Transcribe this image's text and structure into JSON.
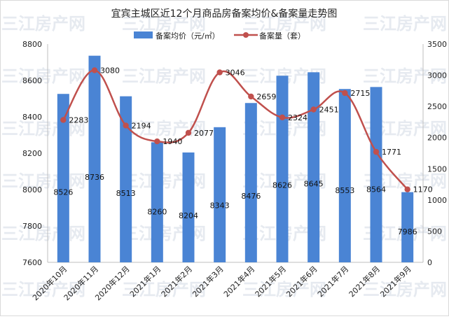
{
  "chart_data": {
    "type": "bar",
    "title": "宜宾主城区近12个月商品房备案均价&备案量走势图",
    "watermark": "三江房产网",
    "categories": [
      "2020年10月",
      "2020年11月",
      "2020年12月",
      "2021年1月",
      "2021年2月",
      "2021年3月",
      "2021年4月",
      "2021年5月",
      "2021年6月",
      "2021年7月",
      "2021年8月",
      "2021年9月"
    ],
    "series": [
      {
        "name": "备案均价（元/㎡）",
        "type": "bar",
        "axis": "left",
        "color": "#4a84d4",
        "values": [
          8526,
          8736,
          8513,
          8260,
          8204,
          8343,
          8476,
          8626,
          8645,
          8553,
          8564,
          7986
        ]
      },
      {
        "name": "备案量（套）",
        "type": "line",
        "axis": "right",
        "color": "#c0504d",
        "values": [
          2283,
          3080,
          2194,
          1940,
          2077,
          3046,
          2659,
          2324,
          2451,
          2715,
          1771,
          1170
        ]
      }
    ],
    "y_left": {
      "min": 7600,
      "max": 8800,
      "ticks": [
        7600,
        7800,
        8000,
        8200,
        8400,
        8600,
        8800
      ]
    },
    "y_right": {
      "min": 0,
      "max": 3500,
      "ticks": [
        0,
        500,
        1000,
        1500,
        2000,
        2500,
        3000,
        3500
      ]
    },
    "legend_position": "top-center",
    "grid": false
  }
}
